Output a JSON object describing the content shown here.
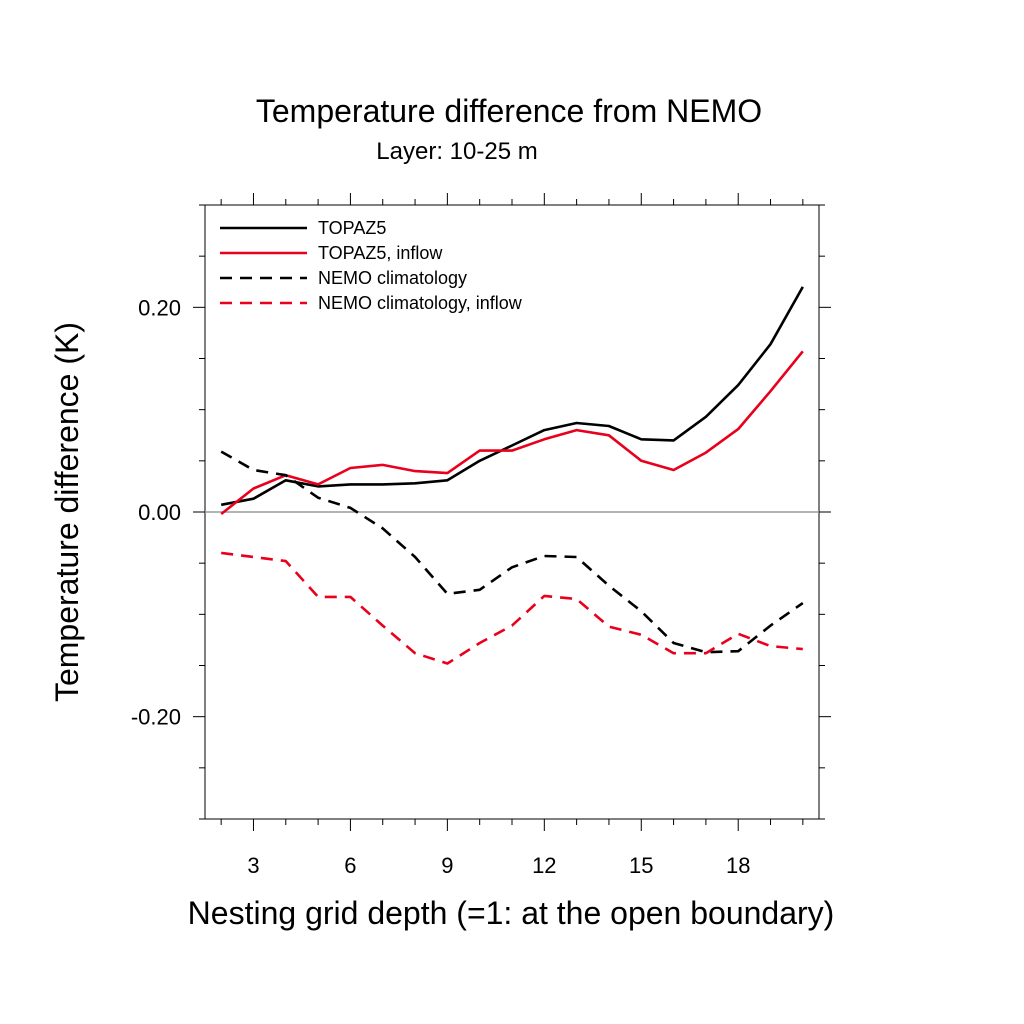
{
  "chart_data": {
    "type": "line",
    "title": "Temperature difference from NEMO",
    "subtitle": "Layer: 10-25 m",
    "xlabel": "Nesting grid depth (=1: at the open boundary)",
    "ylabel": "Temperature difference (K)",
    "xlim": [
      1.5,
      20.5
    ],
    "ylim": [
      -0.3,
      0.3
    ],
    "x_ticks": [
      3,
      6,
      9,
      12,
      15,
      18
    ],
    "x_tick_labels": [
      "3",
      "6",
      "9",
      "12",
      "15",
      "18"
    ],
    "y_ticks": [
      -0.2,
      0.0,
      0.2
    ],
    "y_tick_labels": [
      "-0.20",
      "0.00",
      "0.20"
    ],
    "zero_line": true,
    "legend_position": "top-left",
    "x": [
      2,
      3,
      4,
      5,
      6,
      7,
      8,
      9,
      10,
      11,
      12,
      13,
      14,
      15,
      16,
      17,
      18,
      19,
      20
    ],
    "series": [
      {
        "name": "TOPAZ5",
        "color": "#000000",
        "dash": "solid",
        "values": [
          0.007,
          0.013,
          0.031,
          0.025,
          0.027,
          0.027,
          0.028,
          0.031,
          0.05,
          0.065,
          0.08,
          0.087,
          0.084,
          0.071,
          0.07,
          0.093,
          0.124,
          0.164,
          0.22
        ]
      },
      {
        "name": "TOPAZ5, inflow",
        "color": "#e8001c",
        "dash": "solid",
        "values": [
          -0.002,
          0.023,
          0.036,
          0.027,
          0.043,
          0.046,
          0.04,
          0.038,
          0.06,
          0.06,
          0.071,
          0.08,
          0.075,
          0.05,
          0.041,
          0.058,
          0.081,
          0.118,
          0.157
        ]
      },
      {
        "name": "NEMO climatology",
        "color": "#000000",
        "dash": "dashed",
        "values": [
          0.059,
          0.041,
          0.036,
          0.014,
          0.004,
          -0.016,
          -0.044,
          -0.08,
          -0.076,
          -0.054,
          -0.043,
          -0.044,
          -0.072,
          -0.097,
          -0.128,
          -0.137,
          -0.136,
          -0.111,
          -0.089
        ]
      },
      {
        "name": "NEMO climatology, inflow",
        "color": "#e8001c",
        "dash": "dashed",
        "values": [
          -0.04,
          -0.044,
          -0.048,
          -0.083,
          -0.083,
          -0.111,
          -0.138,
          -0.148,
          -0.128,
          -0.111,
          -0.082,
          -0.085,
          -0.112,
          -0.12,
          -0.138,
          -0.138,
          -0.119,
          -0.131,
          -0.134
        ]
      }
    ]
  }
}
